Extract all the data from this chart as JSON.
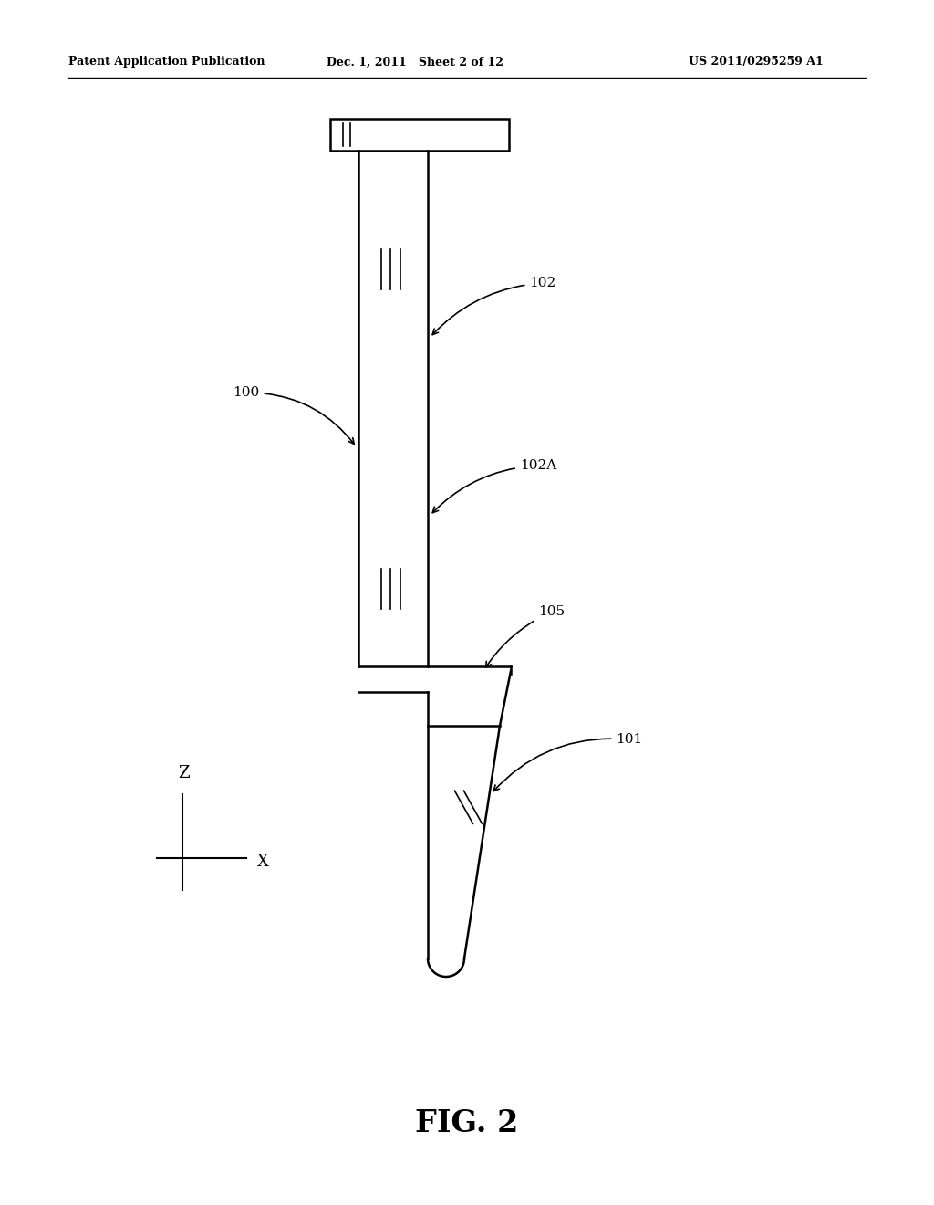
{
  "background_color": "#ffffff",
  "header_left": "Patent Application Publication",
  "header_mid": "Dec. 1, 2011   Sheet 2 of 12",
  "header_right": "US 2011/0295259 A1",
  "fig_label": "FIG. 2",
  "line_color": "#000000",
  "lw_outer": 1.8,
  "lw_inner": 1.2,
  "label_fontsize": 11,
  "header_fontsize": 9,
  "fig_fontsize": 24
}
